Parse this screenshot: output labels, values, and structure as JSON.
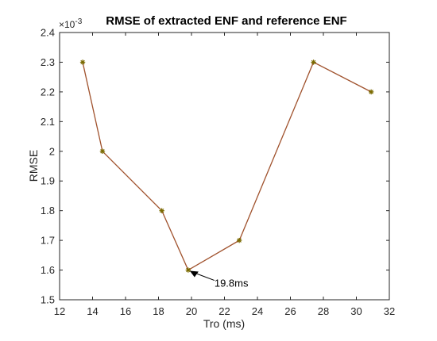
{
  "chart_data": {
    "type": "line",
    "title": "RMSE of extracted ENF and reference ENF",
    "xlabel": "Tro (ms)",
    "ylabel": "RMSE",
    "y_exponent_label": "×10",
    "y_exponent_power": "-3",
    "xlim": [
      12,
      32
    ],
    "ylim": [
      1.5,
      2.4
    ],
    "x_ticks": [
      "12",
      "14",
      "16",
      "18",
      "20",
      "22",
      "24",
      "26",
      "28",
      "30",
      "32"
    ],
    "y_ticks": [
      "1.5",
      "1.6",
      "1.7",
      "1.8",
      "1.9",
      "2",
      "2.1",
      "2.2",
      "2.3",
      "2.4"
    ],
    "grid": false,
    "series": [
      {
        "x": [
          13.4,
          14.6,
          18.2,
          19.8,
          22.9,
          27.4,
          30.9
        ],
        "y": [
          2.3,
          2.0,
          1.8,
          1.6,
          1.7,
          2.3,
          2.2
        ],
        "line_color": "#A0522D",
        "marker": "asterisk",
        "marker_color": "#7A6A00"
      }
    ],
    "annotations": [
      {
        "text": "19.8ms",
        "x": 19.8,
        "y": 1.6
      }
    ]
  }
}
